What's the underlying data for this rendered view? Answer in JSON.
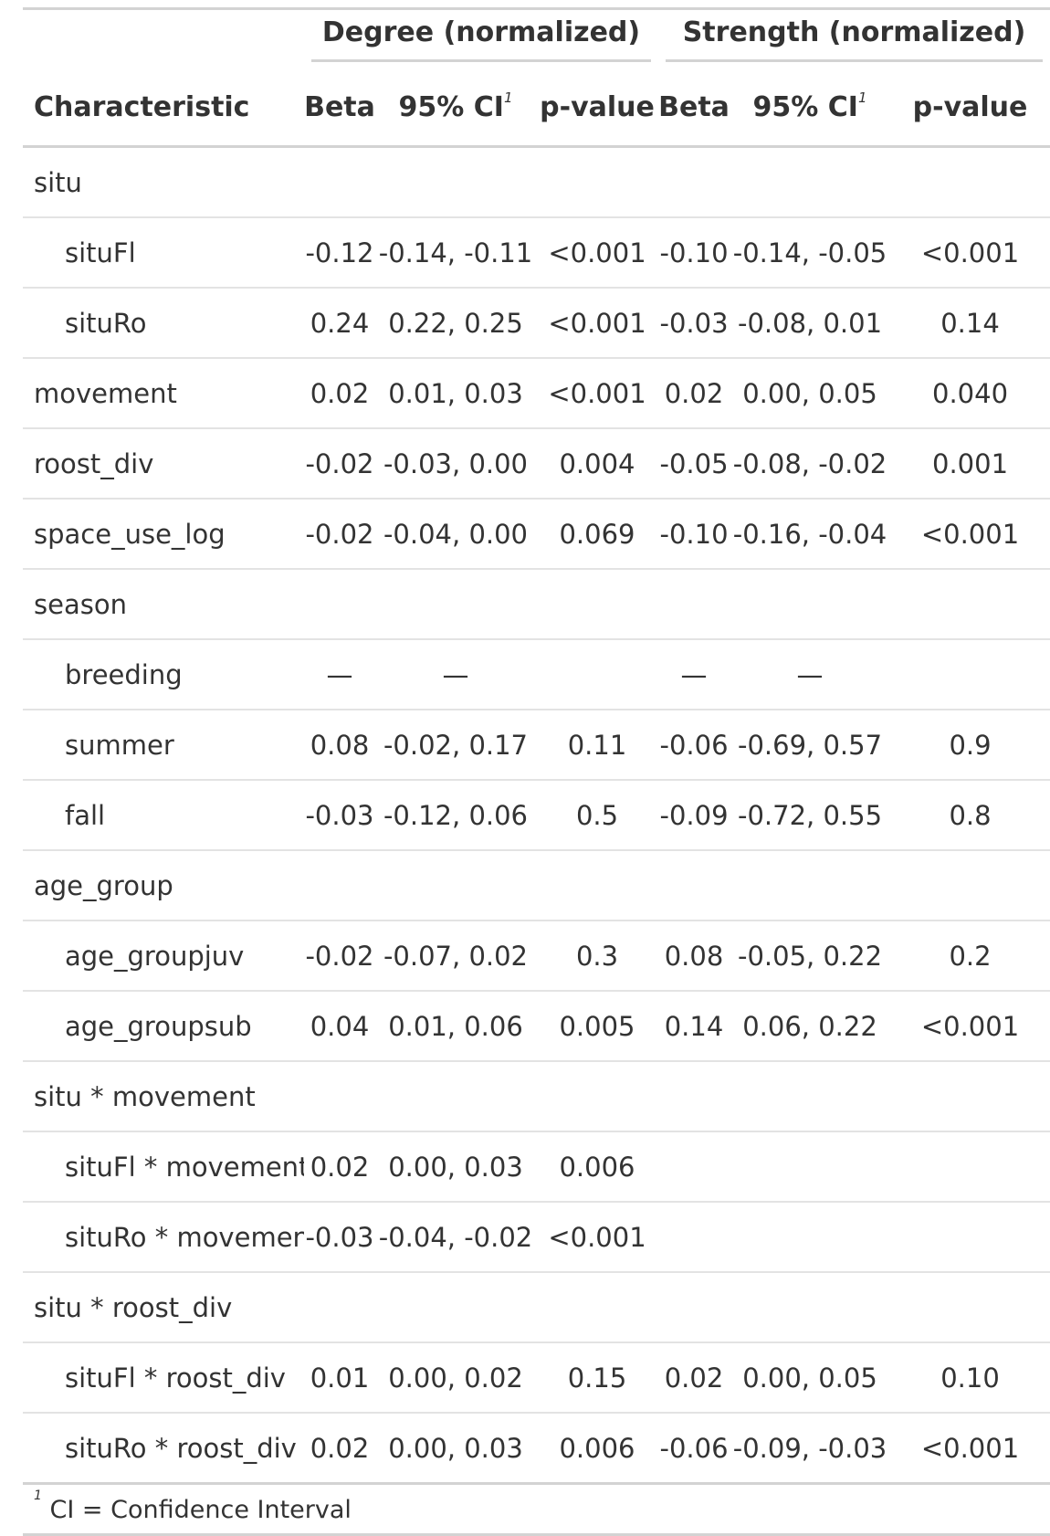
{
  "table": {
    "spanners": {
      "degree": "Degree (normalized)",
      "strength": "Strength (normalized)"
    },
    "headers": {
      "characteristic": "Characteristic",
      "beta": "Beta",
      "ci": "95% CI",
      "ci_footnote_mark": "1",
      "pvalue": "p-value"
    },
    "rows": [
      {
        "label": "situ",
        "indent": false,
        "d_beta": "",
        "d_ci": "",
        "d_p": "",
        "s_beta": "",
        "s_ci": "",
        "s_p": ""
      },
      {
        "label": "situFl",
        "indent": true,
        "d_beta": "-0.12",
        "d_ci": "-0.14, -0.11",
        "d_p": "<0.001",
        "s_beta": "-0.10",
        "s_ci": "-0.14, -0.05",
        "s_p": "<0.001"
      },
      {
        "label": "situRo",
        "indent": true,
        "d_beta": "0.24",
        "d_ci": "0.22, 0.25",
        "d_p": "<0.001",
        "s_beta": "-0.03",
        "s_ci": "-0.08, 0.01",
        "s_p": "0.14"
      },
      {
        "label": "movement",
        "indent": false,
        "d_beta": "0.02",
        "d_ci": "0.01, 0.03",
        "d_p": "<0.001",
        "s_beta": "0.02",
        "s_ci": "0.00, 0.05",
        "s_p": "0.040"
      },
      {
        "label": "roost_div",
        "indent": false,
        "d_beta": "-0.02",
        "d_ci": "-0.03, 0.00",
        "d_p": "0.004",
        "s_beta": "-0.05",
        "s_ci": "-0.08, -0.02",
        "s_p": "0.001"
      },
      {
        "label": "space_use_log",
        "indent": false,
        "d_beta": "-0.02",
        "d_ci": "-0.04, 0.00",
        "d_p": "0.069",
        "s_beta": "-0.10",
        "s_ci": "-0.16, -0.04",
        "s_p": "<0.001"
      },
      {
        "label": "season",
        "indent": false,
        "d_beta": "",
        "d_ci": "",
        "d_p": "",
        "s_beta": "",
        "s_ci": "",
        "s_p": ""
      },
      {
        "label": "breeding",
        "indent": true,
        "d_beta": "—",
        "d_ci": "—",
        "d_p": "",
        "s_beta": "—",
        "s_ci": "—",
        "s_p": ""
      },
      {
        "label": "summer",
        "indent": true,
        "d_beta": "0.08",
        "d_ci": "-0.02, 0.17",
        "d_p": "0.11",
        "s_beta": "-0.06",
        "s_ci": "-0.69, 0.57",
        "s_p": "0.9"
      },
      {
        "label": "fall",
        "indent": true,
        "d_beta": "-0.03",
        "d_ci": "-0.12, 0.06",
        "d_p": "0.5",
        "s_beta": "-0.09",
        "s_ci": "-0.72, 0.55",
        "s_p": "0.8"
      },
      {
        "label": "age_group",
        "indent": false,
        "d_beta": "",
        "d_ci": "",
        "d_p": "",
        "s_beta": "",
        "s_ci": "",
        "s_p": ""
      },
      {
        "label": "age_groupjuv",
        "indent": true,
        "d_beta": "-0.02",
        "d_ci": "-0.07, 0.02",
        "d_p": "0.3",
        "s_beta": "0.08",
        "s_ci": "-0.05, 0.22",
        "s_p": "0.2"
      },
      {
        "label": "age_groupsub",
        "indent": true,
        "d_beta": "0.04",
        "d_ci": "0.01, 0.06",
        "d_p": "0.005",
        "s_beta": "0.14",
        "s_ci": "0.06, 0.22",
        "s_p": "<0.001"
      },
      {
        "label": "situ * movement",
        "indent": false,
        "d_beta": "",
        "d_ci": "",
        "d_p": "",
        "s_beta": "",
        "s_ci": "",
        "s_p": ""
      },
      {
        "label": "situFl * movement",
        "indent": true,
        "d_beta": "0.02",
        "d_ci": "0.00, 0.03",
        "d_p": "0.006",
        "s_beta": "",
        "s_ci": "",
        "s_p": ""
      },
      {
        "label": "situRo * movement",
        "indent": true,
        "d_beta": "-0.03",
        "d_ci": "-0.04, -0.02",
        "d_p": "<0.001",
        "s_beta": "",
        "s_ci": "",
        "s_p": ""
      },
      {
        "label": "situ * roost_div",
        "indent": false,
        "d_beta": "",
        "d_ci": "",
        "d_p": "",
        "s_beta": "",
        "s_ci": "",
        "s_p": ""
      },
      {
        "label": "situFl * roost_div",
        "indent": true,
        "d_beta": "0.01",
        "d_ci": "0.00, 0.02",
        "d_p": "0.15",
        "s_beta": "0.02",
        "s_ci": "0.00, 0.05",
        "s_p": "0.10"
      },
      {
        "label": "situRo * roost_div",
        "indent": true,
        "d_beta": "0.02",
        "d_ci": "0.00, 0.03",
        "d_p": "0.006",
        "s_beta": "-0.06",
        "s_ci": "-0.09, -0.03",
        "s_p": "<0.001"
      }
    ],
    "footnote": {
      "mark": "1",
      "text": "CI = Confidence Interval"
    }
  }
}
